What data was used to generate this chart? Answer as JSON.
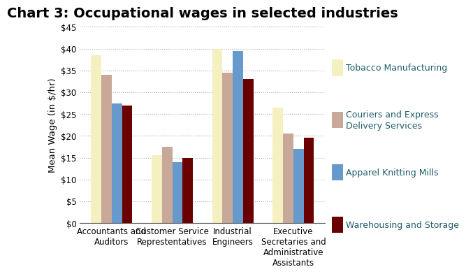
{
  "title": "Chart 3: Occupational wages in selected industries",
  "ylabel": "Mean Wage (in $/hr)",
  "categories": [
    "Accountants and\nAuditors",
    "Customer Service\nReprestentatives",
    "Industrial\nEngineers",
    "Executive\nSecretaries and\nAdministrative\nAssistants"
  ],
  "series": [
    {
      "name": "Tobacco Manufacturing",
      "color": "#F5F0C0",
      "values": [
        38.5,
        15.5,
        40.0,
        26.5
      ]
    },
    {
      "name": "Couriers and Express\nDelivery Services",
      "color": "#C8A898",
      "values": [
        34.0,
        17.5,
        34.5,
        20.5
      ]
    },
    {
      "name": "Apparel Knitting Mills",
      "color": "#6699CC",
      "values": [
        27.5,
        14.0,
        39.5,
        17.0
      ]
    },
    {
      "name": "Warehousing and Storage",
      "color": "#6B0000",
      "values": [
        27.0,
        15.0,
        33.0,
        19.5
      ]
    }
  ],
  "ylim": [
    0,
    45
  ],
  "yticks": [
    0,
    5,
    10,
    15,
    20,
    25,
    30,
    35,
    40,
    45
  ],
  "ytick_labels": [
    "$0",
    "$5",
    "$10",
    "$15",
    "$20",
    "$25",
    "$30",
    "$35",
    "$40",
    "$45"
  ],
  "bar_width": 0.17,
  "title_fontsize": 14,
  "axis_label_fontsize": 9.5,
  "tick_fontsize": 8.5,
  "legend_fontsize": 9,
  "legend_text_color": "#1F5C6B",
  "background_color": "#FFFFFF",
  "grid_color": "#AAAAAA",
  "grid_linestyle": "dotted"
}
